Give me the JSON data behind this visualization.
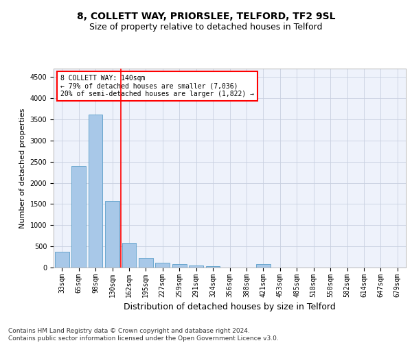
{
  "title1": "8, COLLETT WAY, PRIORSLEE, TELFORD, TF2 9SL",
  "title2": "Size of property relative to detached houses in Telford",
  "xlabel": "Distribution of detached houses by size in Telford",
  "ylabel": "Number of detached properties",
  "categories": [
    "33sqm",
    "65sqm",
    "98sqm",
    "130sqm",
    "162sqm",
    "195sqm",
    "227sqm",
    "259sqm",
    "291sqm",
    "324sqm",
    "356sqm",
    "388sqm",
    "421sqm",
    "453sqm",
    "485sqm",
    "518sqm",
    "550sqm",
    "582sqm",
    "614sqm",
    "647sqm",
    "679sqm"
  ],
  "values": [
    370,
    2400,
    3620,
    1580,
    580,
    230,
    110,
    80,
    55,
    40,
    0,
    0,
    75,
    0,
    0,
    0,
    0,
    0,
    0,
    0,
    0
  ],
  "bar_color": "#a8c8e8",
  "bar_edge_color": "#5a9ec9",
  "vline_x": 3.5,
  "vline_color": "red",
  "annotation_text": "8 COLLETT WAY: 140sqm\n← 79% of detached houses are smaller (7,036)\n20% of semi-detached houses are larger (1,822) →",
  "annotation_box_color": "white",
  "annotation_box_edge": "red",
  "ylim": [
    0,
    4700
  ],
  "yticks": [
    0,
    500,
    1000,
    1500,
    2000,
    2500,
    3000,
    3500,
    4000,
    4500
  ],
  "footer": "Contains HM Land Registry data © Crown copyright and database right 2024.\nContains public sector information licensed under the Open Government Licence v3.0.",
  "bg_color": "#eef2fb",
  "grid_color": "#c8d0e0",
  "title1_fontsize": 10,
  "title2_fontsize": 9,
  "xlabel_fontsize": 9,
  "ylabel_fontsize": 8,
  "tick_fontsize": 7,
  "footer_fontsize": 6.5
}
